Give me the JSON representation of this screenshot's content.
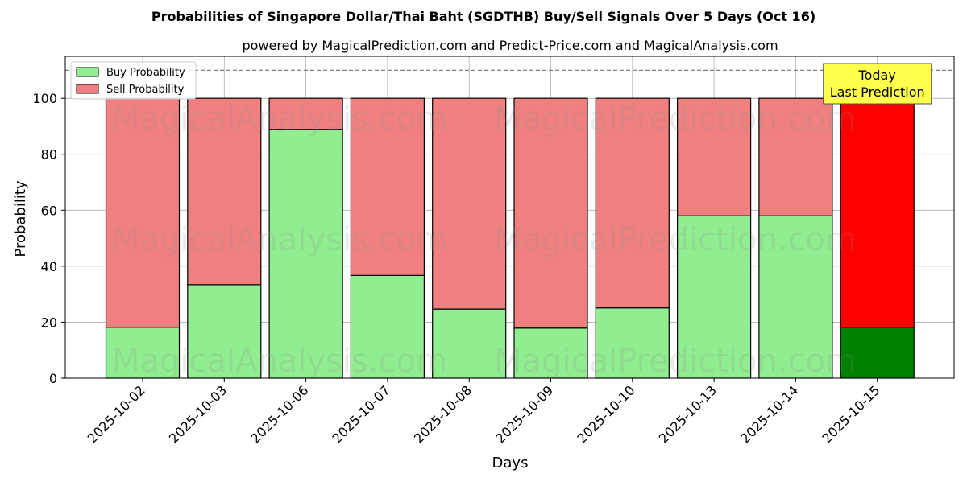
{
  "title": "Probabilities of Singapore Dollar/Thai Baht (SGDTHB) Buy/Sell Signals Over 5 Days (Oct 16)",
  "subtitle": "powered by MagicalPrediction.com and Predict-Price.com and MagicalAnalysis.com",
  "watermarks": [
    "MagicalAnalysis.com",
    "MagicalPrediction.com"
  ],
  "colors": {
    "buy": "#90ee90",
    "sell": "#f08080",
    "buy_today": "#008000",
    "sell_today": "#ff0000",
    "annotation_bg": "#ffff4d"
  },
  "annotation": {
    "line1": "Today",
    "line2": "Last Prediction"
  },
  "chart_data": {
    "type": "bar",
    "stacked": true,
    "categories": [
      "2025-10-02",
      "2025-10-03",
      "2025-10-06",
      "2025-10-07",
      "2025-10-08",
      "2025-10-09",
      "2025-10-10",
      "2025-10-13",
      "2025-10-14",
      "2025-10-15"
    ],
    "series": [
      {
        "name": "Buy Probability",
        "values": [
          18.2,
          33.4,
          88.9,
          36.7,
          24.7,
          17.9,
          25.1,
          58.0,
          58.0,
          18.2
        ]
      },
      {
        "name": "Sell Probability",
        "values": [
          81.8,
          66.6,
          11.1,
          63.3,
          75.3,
          82.1,
          74.9,
          42.0,
          42.0,
          81.8
        ]
      }
    ],
    "xlabel": "Days",
    "ylabel": "Probability",
    "ylim": [
      0,
      115
    ],
    "yticks": [
      0,
      20,
      40,
      60,
      80,
      100
    ],
    "reference_line": 110,
    "grid": true,
    "legend_position": "top-left",
    "highlight_last": true
  }
}
